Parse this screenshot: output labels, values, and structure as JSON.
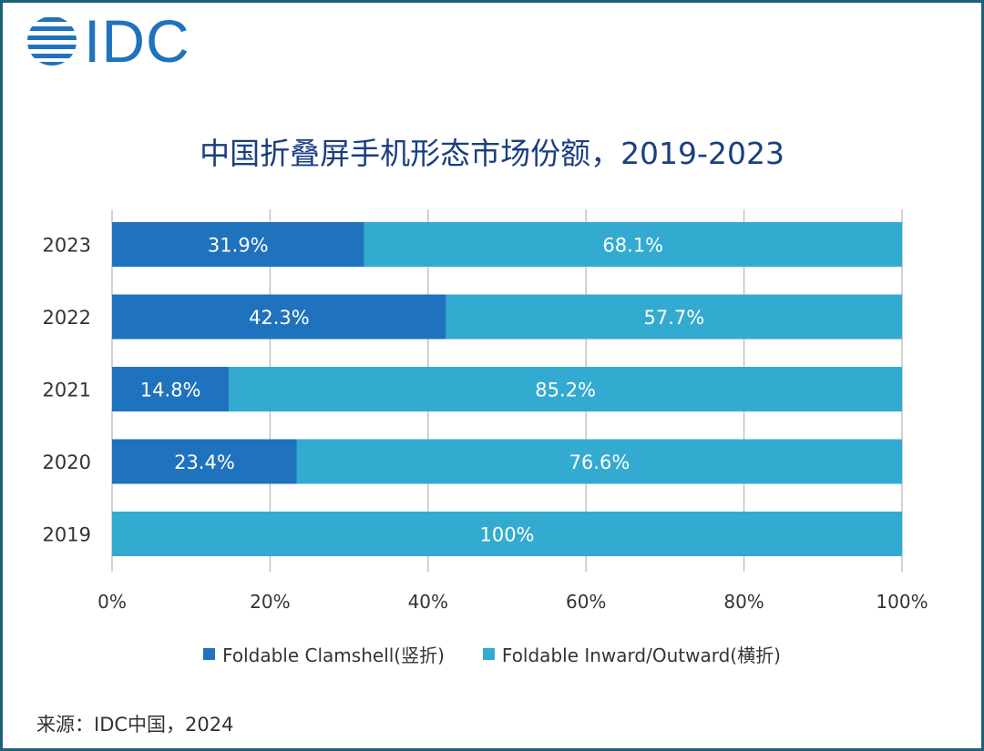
{
  "logo": {
    "text": "IDC"
  },
  "chart_data": {
    "type": "bar",
    "orientation": "horizontal",
    "stacked": true,
    "title": "中国折叠屏手机形态市场份额，2019-2023",
    "categories": [
      "2023",
      "2022",
      "2021",
      "2020",
      "2019"
    ],
    "series": [
      {
        "name": "Foldable Clamshell(竖折)",
        "color": "#1f72bd",
        "values": [
          31.9,
          42.3,
          14.8,
          23.4,
          0
        ],
        "labels": [
          "31.9%",
          "42.3%",
          "14.8%",
          "23.4%",
          ""
        ]
      },
      {
        "name": "Foldable Inward/Outward(横折)",
        "color": "#33aad0",
        "values": [
          68.1,
          57.7,
          85.2,
          76.6,
          100
        ],
        "labels": [
          "68.1%",
          "57.7%",
          "85.2%",
          "76.6%",
          "100%"
        ]
      }
    ],
    "xlim": [
      0,
      100
    ],
    "xticks": [
      "0%",
      "20%",
      "40%",
      "60%",
      "80%",
      "100%"
    ],
    "grid": true,
    "legend": "bottom"
  },
  "source": "来源：IDC中国，2024"
}
